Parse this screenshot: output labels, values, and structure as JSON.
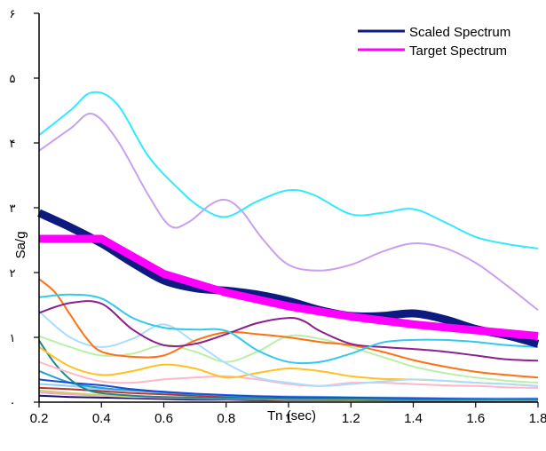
{
  "chart_data": {
    "type": "line",
    "xlabel": "Tn (sec)",
    "ylabel": "Sa/g",
    "xlim": [
      0.2,
      1.8
    ],
    "ylim": [
      0,
      6
    ],
    "x_ticks": [
      "0.2",
      "0.4",
      "0.6",
      "0.8",
      "1",
      "1.2",
      "1.4",
      "1.6",
      "1.8"
    ],
    "y_ticks": [
      "۰",
      "۱",
      "۲",
      "۳",
      "۴",
      "۵",
      "۶"
    ],
    "legend": {
      "position": "top-right",
      "entries": [
        {
          "label": "Scaled Spectrum",
          "color": "#0d1a80"
        },
        {
          "label": "Target Spectrum",
          "color": "#ff00ff"
        }
      ]
    },
    "grid": false,
    "series": [
      {
        "name": "Scaled Spectrum",
        "color": "#0d1a80",
        "width": 9,
        "x": [
          0.2,
          0.3,
          0.4,
          0.5,
          0.6,
          0.7,
          0.8,
          0.9,
          1.0,
          1.1,
          1.2,
          1.3,
          1.4,
          1.5,
          1.6,
          1.7,
          1.8
        ],
        "y": [
          2.92,
          2.7,
          2.45,
          2.15,
          1.88,
          1.76,
          1.72,
          1.66,
          1.56,
          1.42,
          1.33,
          1.33,
          1.37,
          1.28,
          1.13,
          1.03,
          0.9
        ]
      },
      {
        "name": "Target Spectrum",
        "color": "#ff00ff",
        "width": 9,
        "x": [
          0.2,
          0.4,
          0.6,
          0.8,
          1.0,
          1.2,
          1.4,
          1.6,
          1.8
        ],
        "y": [
          2.52,
          2.52,
          1.98,
          1.69,
          1.48,
          1.32,
          1.2,
          1.11,
          1.02
        ]
      },
      {
        "color": "#33e8ff",
        "width": 2,
        "x": [
          0.2,
          0.3,
          0.37,
          0.45,
          0.55,
          0.65,
          0.72,
          0.8,
          0.9,
          1.0,
          1.08,
          1.2,
          1.3,
          1.4,
          1.5,
          1.6,
          1.7,
          1.8
        ],
        "y": [
          4.12,
          4.5,
          4.78,
          4.6,
          3.8,
          3.28,
          3.0,
          2.86,
          3.1,
          3.27,
          3.2,
          2.9,
          2.92,
          2.98,
          2.78,
          2.55,
          2.44,
          2.37
        ]
      },
      {
        "color": "#c8a0f0",
        "width": 2,
        "x": [
          0.2,
          0.3,
          0.37,
          0.45,
          0.55,
          0.62,
          0.68,
          0.75,
          0.8,
          0.85,
          0.92,
          1.0,
          1.1,
          1.2,
          1.3,
          1.4,
          1.5,
          1.6,
          1.7,
          1.8
        ],
        "y": [
          3.88,
          4.22,
          4.45,
          4.05,
          3.2,
          2.72,
          2.78,
          3.05,
          3.12,
          2.95,
          2.5,
          2.12,
          2.03,
          2.12,
          2.32,
          2.45,
          2.38,
          2.15,
          1.8,
          1.42
        ]
      },
      {
        "color": "#33c8ee",
        "width": 2,
        "x": [
          0.2,
          0.3,
          0.4,
          0.5,
          0.6,
          0.7,
          0.8,
          0.9,
          1.0,
          1.1,
          1.2,
          1.3,
          1.4,
          1.5,
          1.6,
          1.7,
          1.8
        ],
        "y": [
          1.62,
          1.66,
          1.6,
          1.3,
          1.15,
          1.12,
          1.1,
          0.8,
          0.62,
          0.62,
          0.75,
          0.92,
          0.96,
          0.96,
          0.93,
          0.88,
          0.85
        ]
      },
      {
        "color": "#8b1f8b",
        "width": 2,
        "x": [
          0.2,
          0.3,
          0.4,
          0.5,
          0.6,
          0.7,
          0.8,
          0.9,
          1.0,
          1.05,
          1.1,
          1.2,
          1.3,
          1.4,
          1.5,
          1.6,
          1.7,
          1.8
        ],
        "y": [
          1.38,
          1.53,
          1.52,
          1.12,
          0.88,
          0.9,
          1.05,
          1.22,
          1.3,
          1.25,
          1.1,
          0.9,
          0.85,
          0.82,
          0.78,
          0.72,
          0.66,
          0.64
        ]
      },
      {
        "color": "#ff7010",
        "width": 2,
        "x": [
          0.2,
          0.25,
          0.3,
          0.35,
          0.4,
          0.5,
          0.6,
          0.7,
          0.8,
          0.9,
          1.0,
          1.1,
          1.2,
          1.3,
          1.4,
          1.5,
          1.6,
          1.7,
          1.8
        ],
        "y": [
          1.9,
          1.7,
          1.35,
          1.0,
          0.78,
          0.7,
          0.72,
          0.95,
          1.08,
          1.05,
          1.0,
          0.93,
          0.88,
          0.78,
          0.65,
          0.55,
          0.47,
          0.42,
          0.38
        ]
      },
      {
        "color": "#aadcff",
        "width": 2,
        "x": [
          0.2,
          0.3,
          0.4,
          0.5,
          0.6,
          0.7,
          0.8,
          0.9,
          1.0,
          1.1,
          1.2,
          1.3,
          1.4,
          1.5,
          1.6,
          1.7,
          1.8
        ],
        "y": [
          1.4,
          1.0,
          0.85,
          0.98,
          1.2,
          0.92,
          0.6,
          0.38,
          0.3,
          0.25,
          0.28,
          0.32,
          0.35,
          0.33,
          0.3,
          0.28,
          0.25
        ]
      },
      {
        "color": "#b8f0a8",
        "width": 2,
        "x": [
          0.2,
          0.3,
          0.4,
          0.5,
          0.6,
          0.7,
          0.8,
          0.9,
          1.0,
          1.1,
          1.2,
          1.3,
          1.4,
          1.5,
          1.6,
          1.7,
          1.8
        ],
        "y": [
          1.02,
          0.85,
          0.72,
          0.75,
          0.88,
          0.78,
          0.62,
          0.78,
          1.02,
          0.98,
          0.85,
          0.7,
          0.55,
          0.45,
          0.38,
          0.33,
          0.3
        ]
      },
      {
        "color": "#ffc020",
        "width": 2,
        "x": [
          0.2,
          0.3,
          0.4,
          0.5,
          0.6,
          0.7,
          0.8,
          0.9,
          1.0,
          1.1,
          1.2,
          1.3,
          1.4,
          1.5,
          1.6,
          1.7,
          1.8
        ],
        "y": [
          0.85,
          0.55,
          0.42,
          0.48,
          0.58,
          0.52,
          0.38,
          0.45,
          0.52,
          0.48,
          0.4,
          0.36,
          0.35,
          0.33,
          0.3,
          0.28,
          0.25
        ]
      },
      {
        "color": "#ffb8c8",
        "width": 2,
        "x": [
          0.2,
          0.3,
          0.4,
          0.5,
          0.6,
          0.7,
          0.8,
          0.9,
          1.0,
          1.1,
          1.2,
          1.3,
          1.4,
          1.5,
          1.6,
          1.7,
          1.8
        ],
        "y": [
          0.62,
          0.45,
          0.32,
          0.3,
          0.35,
          0.38,
          0.4,
          0.35,
          0.28,
          0.25,
          0.3,
          0.3,
          0.28,
          0.26,
          0.25,
          0.23,
          0.22
        ]
      },
      {
        "color": "#1a8a8a",
        "width": 2,
        "x": [
          0.2,
          0.25,
          0.3,
          0.35,
          0.4,
          0.5,
          0.6,
          0.7,
          0.8,
          0.9,
          1.0,
          1.2,
          1.4,
          1.6,
          1.8
        ],
        "y": [
          0.95,
          0.6,
          0.35,
          0.2,
          0.14,
          0.1,
          0.08,
          0.07,
          0.06,
          0.06,
          0.05,
          0.05,
          0.04,
          0.04,
          0.04
        ]
      },
      {
        "color": "#1a4ad8",
        "width": 2,
        "x": [
          0.2,
          0.3,
          0.4,
          0.5,
          0.6,
          0.7,
          0.8,
          0.9,
          1.0,
          1.2,
          1.4,
          1.6,
          1.8
        ],
        "y": [
          0.35,
          0.3,
          0.26,
          0.2,
          0.16,
          0.13,
          0.11,
          0.09,
          0.08,
          0.07,
          0.06,
          0.05,
          0.05
        ]
      },
      {
        "color": "#2aa0d0",
        "width": 2,
        "x": [
          0.2,
          0.3,
          0.4,
          0.5,
          0.6,
          0.7,
          0.8,
          0.9,
          1.0,
          1.2,
          1.4,
          1.6,
          1.8
        ],
        "y": [
          0.48,
          0.3,
          0.22,
          0.18,
          0.15,
          0.12,
          0.1,
          0.08,
          0.07,
          0.06,
          0.05,
          0.05,
          0.04
        ]
      },
      {
        "color": "#c03030",
        "width": 2,
        "x": [
          0.2,
          0.3,
          0.4,
          0.5,
          0.6,
          0.7,
          0.8,
          0.9,
          1.0,
          1.2,
          1.4,
          1.6,
          1.8
        ],
        "y": [
          0.22,
          0.2,
          0.17,
          0.14,
          0.12,
          0.1,
          0.08,
          0.07,
          0.06,
          0.05,
          0.05,
          0.04,
          0.04
        ]
      },
      {
        "color": "#8ad0ff",
        "width": 2,
        "x": [
          0.2,
          0.3,
          0.4,
          0.5,
          0.6,
          0.7,
          0.8,
          0.9,
          1.0,
          1.2,
          1.4,
          1.6,
          1.8
        ],
        "y": [
          0.28,
          0.25,
          0.2,
          0.18,
          0.16,
          0.13,
          0.11,
          0.1,
          0.09,
          0.08,
          0.07,
          0.06,
          0.06
        ]
      },
      {
        "color": "#d0d060",
        "width": 2,
        "x": [
          0.2,
          0.3,
          0.4,
          0.5,
          0.6,
          0.7,
          0.8,
          0.9,
          1.0,
          1.2,
          1.4,
          1.6,
          1.8
        ],
        "y": [
          0.18,
          0.14,
          0.11,
          0.09,
          0.08,
          0.07,
          0.06,
          0.05,
          0.05,
          0.04,
          0.04,
          0.03,
          0.03
        ]
      },
      {
        "color": "#f0a0e0",
        "width": 2,
        "x": [
          0.2,
          0.3,
          0.4,
          0.5,
          0.6,
          0.7,
          0.8,
          0.9,
          1.0,
          1.2,
          1.4,
          1.6,
          1.8
        ],
        "y": [
          0.15,
          0.12,
          0.1,
          0.08,
          0.07,
          0.06,
          0.05,
          0.05,
          0.04,
          0.04,
          0.03,
          0.03,
          0.03
        ]
      },
      {
        "color": "#1a1a70",
        "width": 2,
        "x": [
          0.2,
          0.3,
          0.4,
          0.5,
          0.6,
          0.7,
          0.8,
          0.9,
          1.0,
          1.2,
          1.4,
          1.6,
          1.8
        ],
        "y": [
          0.1,
          0.08,
          0.07,
          0.06,
          0.05,
          0.04,
          0.04,
          0.03,
          0.03,
          0.03,
          0.02,
          0.02,
          0.02
        ]
      }
    ]
  }
}
